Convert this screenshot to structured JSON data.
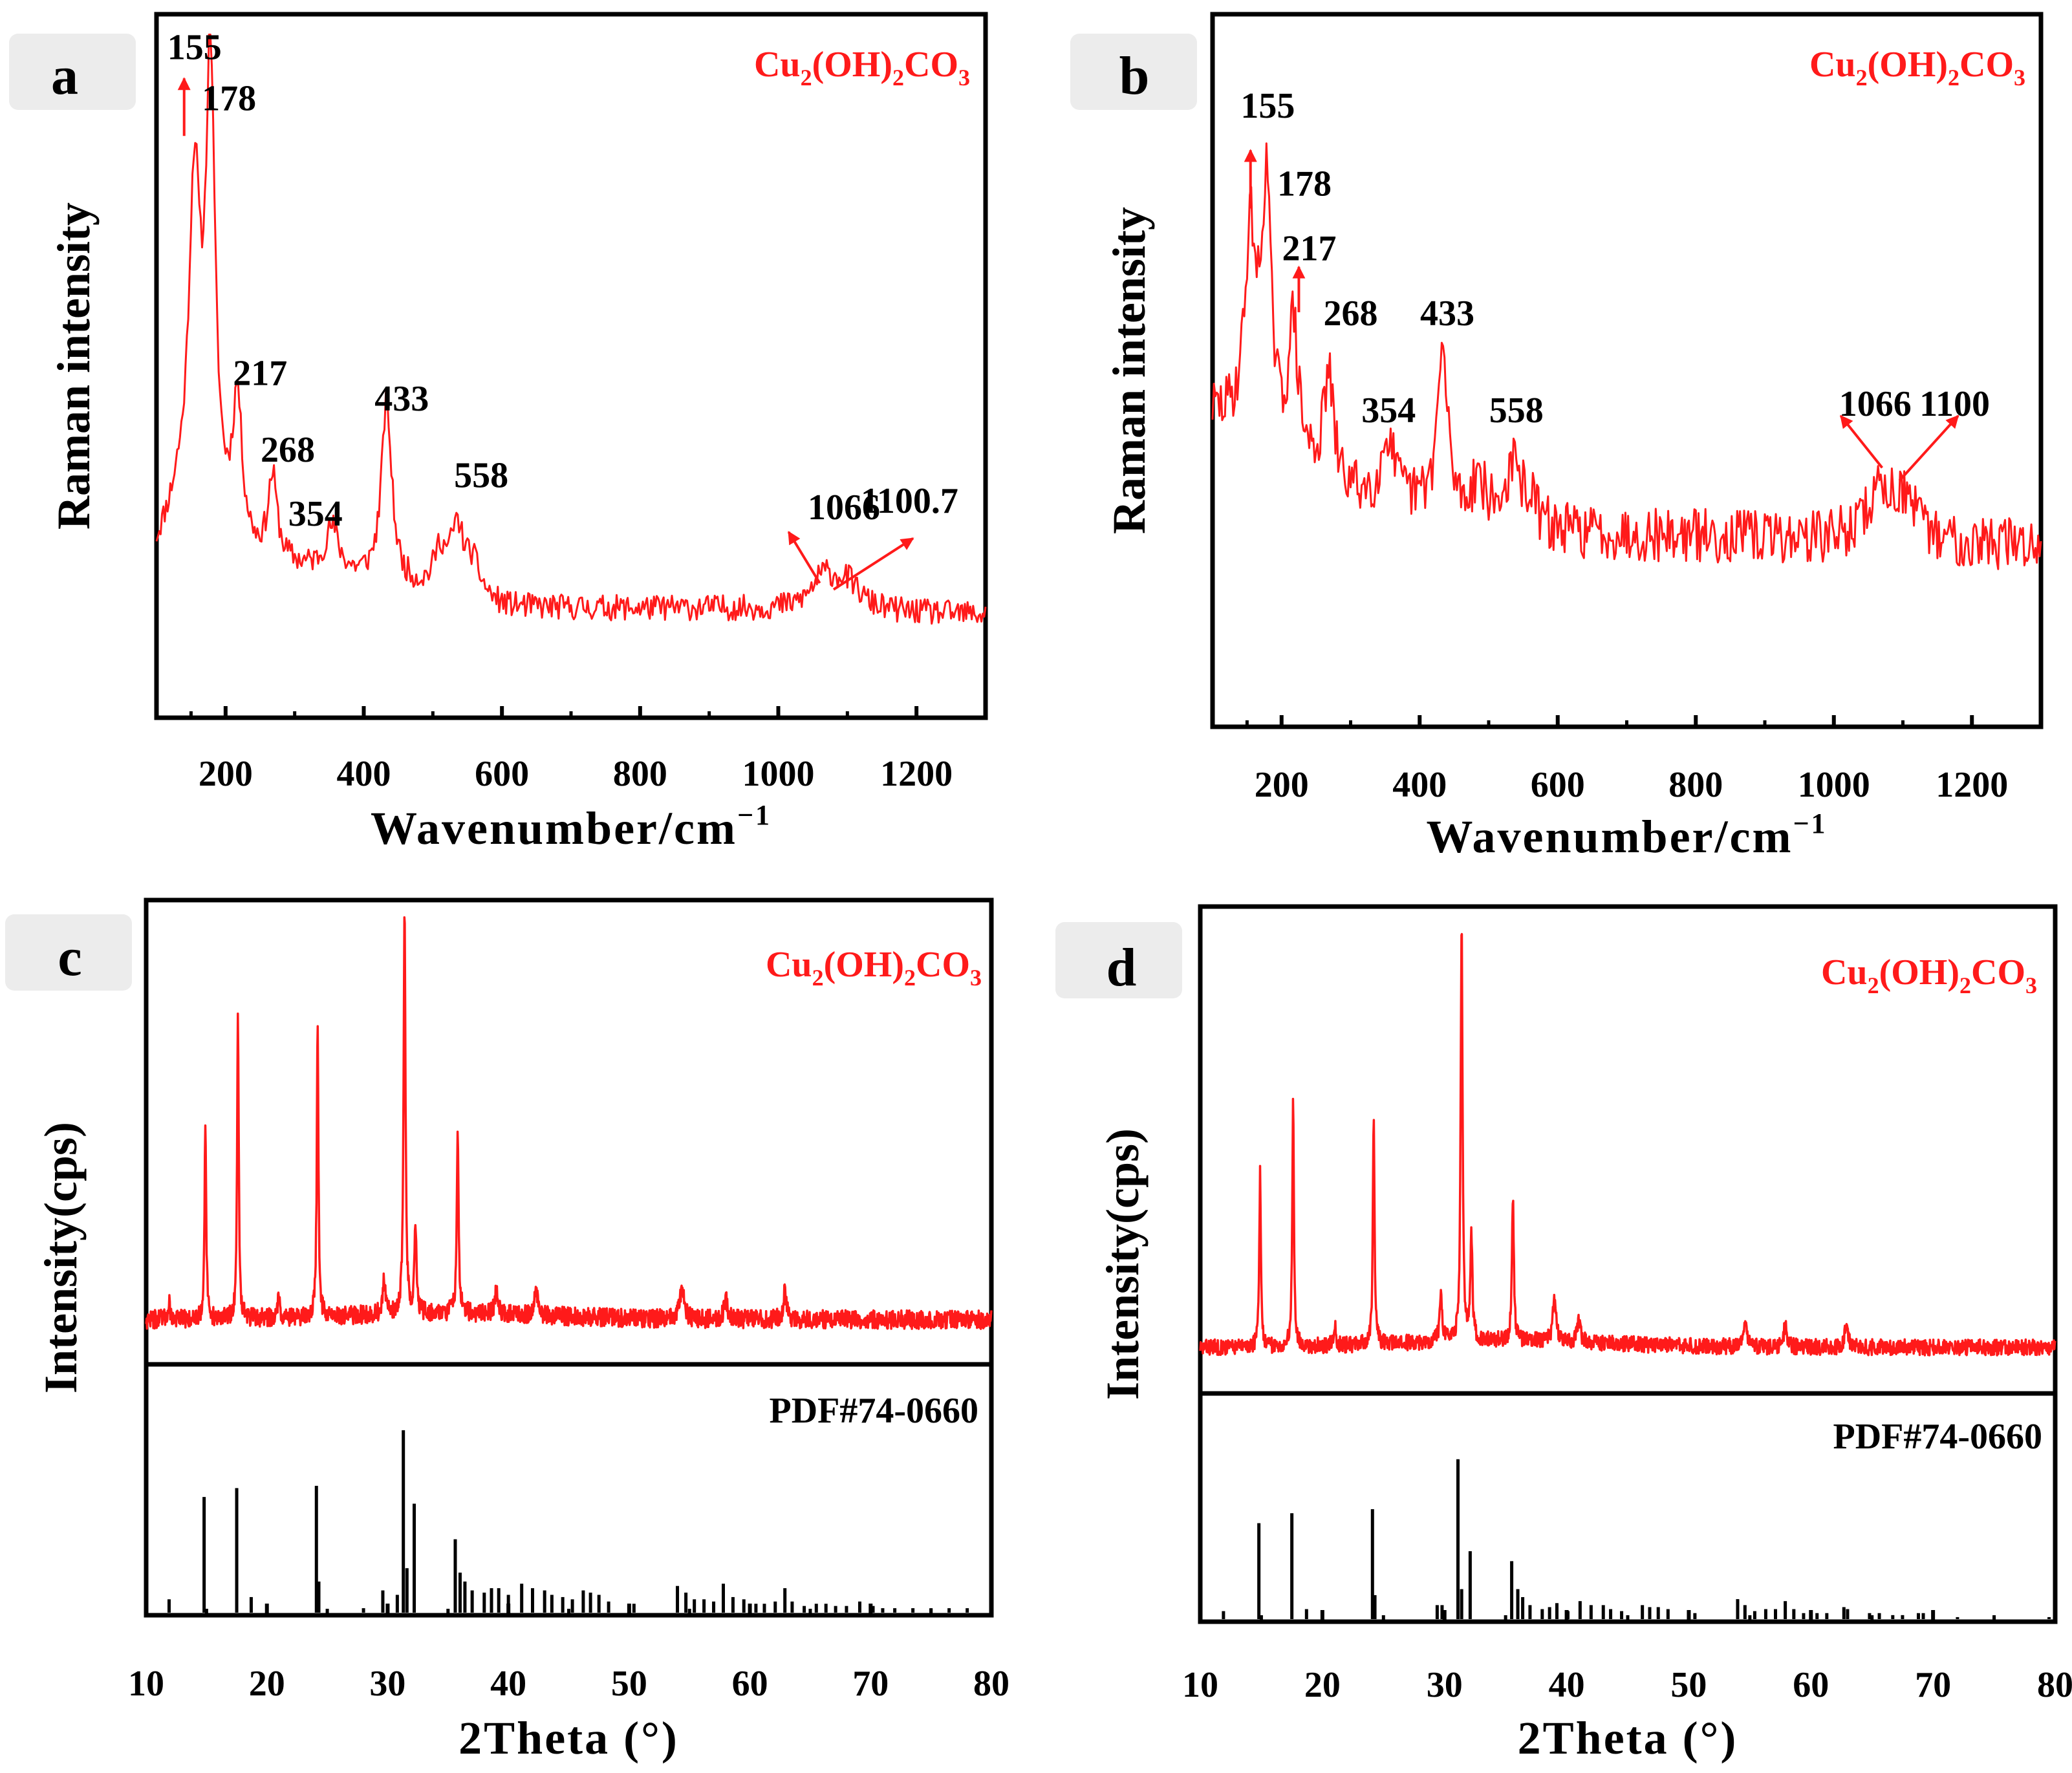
{
  "colors": {
    "spectrum": "#ff1a1a",
    "reference": "#000000",
    "axis": "#000000",
    "panel_badge_bg": "#ececec"
  },
  "chart_data": [
    {
      "panel": "a",
      "type": "line",
      "title": "Cu2(OH)2CO3",
      "compound": {
        "base": "Cu",
        "s1": "2",
        "mid": "(OH)",
        "s2": "2",
        "tail": "CO",
        "s3": "3"
      },
      "xlabel": "Wavenumber/cm",
      "xlabel_sup": "−1",
      "ylabel": "Raman intensity",
      "xlim": [
        100,
        1300
      ],
      "ylim": [
        0,
        100
      ],
      "xticks": [
        "200",
        "400",
        "600",
        "800",
        "1000",
        "1200"
      ],
      "seed": 11,
      "noise": 2.0,
      "baseline": [
        [
          100,
          20
        ],
        [
          130,
          26
        ],
        [
          250,
          18
        ],
        [
          420,
          15
        ],
        [
          600,
          11
        ],
        [
          900,
          11
        ],
        [
          1300,
          10
        ]
      ],
      "peaks": [
        {
          "x": 155,
          "height": 52,
          "width": 10
        },
        {
          "x": 178,
          "height": 70,
          "width": 8
        },
        {
          "x": 217,
          "height": 22,
          "width": 8
        },
        {
          "x": 268,
          "height": 13,
          "width": 8
        },
        {
          "x": 354,
          "height": 7,
          "width": 12
        },
        {
          "x": 433,
          "height": 28,
          "width": 9
        },
        {
          "x": 510,
          "height": 6,
          "width": 10
        },
        {
          "x": 535,
          "height": 10,
          "width": 12
        },
        {
          "x": 558,
          "height": 5,
          "width": 14
        },
        {
          "x": 1066,
          "height": 5,
          "width": 22
        },
        {
          "x": 1100,
          "height": 4,
          "width": 22
        }
      ],
      "annotations": [
        {
          "label": "155",
          "x": 155,
          "y": 97,
          "arrow_from": [
            140,
            85
          ],
          "arrow_to": [
            140,
            94
          ]
        },
        {
          "label": "178",
          "x": 205,
          "y": 89
        },
        {
          "label": "217",
          "x": 250,
          "y": 46
        },
        {
          "label": "268",
          "x": 290,
          "y": 34
        },
        {
          "label": "354",
          "x": 330,
          "y": 24
        },
        {
          "label": "433",
          "x": 455,
          "y": 42
        },
        {
          "label": "558",
          "x": 570,
          "y": 30
        },
        {
          "label": "1066",
          "x": 1095,
          "y": 25,
          "arrow_from": [
            1060,
            15
          ],
          "arrow_to": [
            1015,
            23
          ]
        },
        {
          "label": "1100.7",
          "x": 1190,
          "y": 26,
          "arrow_from": [
            1080,
            14
          ],
          "arrow_to": [
            1195,
            22
          ]
        }
      ]
    },
    {
      "panel": "b",
      "type": "line",
      "title": "Cu2(OH)2CO3",
      "compound": {
        "base": "Cu",
        "s1": "2",
        "mid": "(OH)",
        "s2": "2",
        "tail": "CO",
        "s3": "3"
      },
      "xlabel": "Wavenumber/cm",
      "xlabel_sup": "−1",
      "ylabel": "Raman intensity",
      "xlim": [
        100,
        1300
      ],
      "ylim": [
        0,
        100
      ],
      "xticks": [
        "200",
        "400",
        "600",
        "800",
        "1000",
        "1200"
      ],
      "seed": 29,
      "noise": 4.2,
      "baseline": [
        [
          100,
          42
        ],
        [
          140,
          40
        ],
        [
          300,
          30
        ],
        [
          600,
          24
        ],
        [
          1300,
          22
        ]
      ],
      "peaks": [
        {
          "x": 155,
          "height": 30,
          "width": 10
        },
        {
          "x": 178,
          "height": 38,
          "width": 8
        },
        {
          "x": 217,
          "height": 20,
          "width": 8
        },
        {
          "x": 268,
          "height": 16,
          "width": 8
        },
        {
          "x": 354,
          "height": 10,
          "width": 10
        },
        {
          "x": 433,
          "height": 24,
          "width": 9
        },
        {
          "x": 485,
          "height": 6,
          "width": 10
        },
        {
          "x": 535,
          "height": 8,
          "width": 12
        },
        {
          "x": 558,
          "height": 4,
          "width": 12
        },
        {
          "x": 1066,
          "height": 7,
          "width": 22
        },
        {
          "x": 1100,
          "height": 6,
          "width": 20
        }
      ],
      "annotations": [
        {
          "label": "155",
          "x": 180,
          "y": 88,
          "arrow_from": [
            155,
            74
          ],
          "arrow_to": [
            155,
            83
          ]
        },
        {
          "label": "178",
          "x": 233,
          "y": 76
        },
        {
          "label": "217",
          "x": 240,
          "y": 66,
          "arrow_from": [
            225,
            58
          ],
          "arrow_to": [
            225,
            65
          ]
        },
        {
          "label": "268",
          "x": 300,
          "y": 56
        },
        {
          "label": "354",
          "x": 355,
          "y": 41
        },
        {
          "label": "433",
          "x": 440,
          "y": 56
        },
        {
          "label": "558",
          "x": 540,
          "y": 41
        },
        {
          "label": "1066",
          "x": 1060,
          "y": 42,
          "arrow_from": [
            1070,
            34
          ],
          "arrow_to": [
            1010,
            42
          ]
        },
        {
          "label": "1100",
          "x": 1175,
          "y": 42,
          "arrow_from": [
            1095,
            32
          ],
          "arrow_to": [
            1180,
            42
          ]
        }
      ]
    },
    {
      "panel": "c",
      "type": "line",
      "title": "Cu2(OH)2CO3",
      "compound": {
        "base": "Cu",
        "s1": "2",
        "mid": "(OH)",
        "s2": "2",
        "tail": "CO",
        "s3": "3"
      },
      "reference_label": "PDF#74-0660",
      "xlabel": "2Theta (°)",
      "ylabel": "Intensity(cps)",
      "xlim": [
        10,
        80
      ],
      "xticks": [
        "10",
        "20",
        "30",
        "40",
        "50",
        "60",
        "70",
        "80"
      ],
      "seed": 47,
      "noise": 2.2,
      "measured_baseline": 6,
      "measured_peaks": [
        {
          "x": 14.9,
          "height": 47,
          "width": 0.08
        },
        {
          "x": 17.6,
          "height": 72,
          "width": 0.08
        },
        {
          "x": 24.2,
          "height": 70,
          "width": 0.08
        },
        {
          "x": 31.4,
          "height": 98,
          "width": 0.09
        },
        {
          "x": 32.3,
          "height": 20,
          "width": 0.1
        },
        {
          "x": 35.8,
          "height": 44,
          "width": 0.09
        },
        {
          "x": 29.7,
          "height": 8,
          "width": 0.12
        },
        {
          "x": 21.0,
          "height": 6,
          "width": 0.1
        },
        {
          "x": 39.0,
          "height": 6,
          "width": 0.15
        },
        {
          "x": 42.3,
          "height": 6,
          "width": 0.15
        },
        {
          "x": 54.4,
          "height": 8,
          "width": 0.2
        },
        {
          "x": 62.9,
          "height": 7,
          "width": 0.15
        },
        {
          "x": 58.0,
          "height": 5,
          "width": 0.15
        },
        {
          "x": 11.9,
          "height": 4,
          "width": 0.1
        }
      ],
      "reference_lines": [
        [
          11.9,
          6
        ],
        [
          14.8,
          52
        ],
        [
          17.5,
          56
        ],
        [
          18.7,
          7
        ],
        [
          24.1,
          57
        ],
        [
          24.3,
          14
        ],
        [
          28.0,
          2
        ],
        [
          29.6,
          10
        ],
        [
          30.8,
          8
        ],
        [
          31.3,
          82
        ],
        [
          31.6,
          20
        ],
        [
          32.2,
          49
        ],
        [
          35.6,
          33
        ],
        [
          36.0,
          18
        ],
        [
          36.4,
          14
        ],
        [
          37.0,
          10
        ],
        [
          38.0,
          9
        ],
        [
          38.6,
          11
        ],
        [
          39.2,
          11
        ],
        [
          40.0,
          8
        ],
        [
          41.1,
          13
        ],
        [
          42.0,
          11
        ],
        [
          43.0,
          10
        ],
        [
          43.6,
          8
        ],
        [
          44.5,
          7
        ],
        [
          45.3,
          6
        ],
        [
          46.2,
          10
        ],
        [
          46.8,
          9
        ],
        [
          47.5,
          8
        ],
        [
          48.3,
          5
        ],
        [
          50.4,
          4
        ],
        [
          54.0,
          12
        ],
        [
          54.7,
          9
        ],
        [
          55.4,
          6
        ],
        [
          56.2,
          6
        ],
        [
          57.0,
          5
        ],
        [
          57.8,
          13
        ],
        [
          58.6,
          7
        ],
        [
          59.5,
          6
        ],
        [
          60.5,
          4
        ],
        [
          61.2,
          4
        ],
        [
          62.1,
          5
        ],
        [
          62.9,
          11
        ],
        [
          63.5,
          5
        ],
        [
          64.5,
          3
        ],
        [
          65.5,
          4
        ],
        [
          66.3,
          4
        ],
        [
          67.1,
          3
        ],
        [
          68.0,
          3
        ],
        [
          69.1,
          5
        ],
        [
          70.2,
          3
        ],
        [
          71.0,
          2
        ],
        [
          72.0,
          2
        ],
        [
          73.5,
          2
        ],
        [
          75.0,
          2
        ],
        [
          76.5,
          2
        ],
        [
          78.0,
          2
        ]
      ]
    },
    {
      "panel": "d",
      "type": "line",
      "title": "Cu2(OH)2CO3",
      "compound": {
        "base": "Cu",
        "s1": "2",
        "mid": "(OH)",
        "s2": "2",
        "tail": "CO",
        "s3": "3"
      },
      "reference_label": "PDF#74-0660",
      "xlabel": "2Theta (°)",
      "ylabel": "Intensity(cps)",
      "xlim": [
        10,
        80
      ],
      "xticks": [
        "10",
        "20",
        "30",
        "40",
        "50",
        "60",
        "70",
        "80"
      ],
      "seed": 83,
      "noise": 1.8,
      "measured_baseline": 6,
      "measured_peaks": [
        {
          "x": 14.9,
          "height": 39,
          "width": 0.08
        },
        {
          "x": 17.6,
          "height": 56,
          "width": 0.08
        },
        {
          "x": 24.2,
          "height": 53,
          "width": 0.08
        },
        {
          "x": 31.4,
          "height": 95,
          "width": 0.09
        },
        {
          "x": 32.2,
          "height": 23,
          "width": 0.1
        },
        {
          "x": 35.6,
          "height": 33,
          "width": 0.09
        },
        {
          "x": 29.7,
          "height": 10,
          "width": 0.12
        },
        {
          "x": 21.0,
          "height": 5,
          "width": 0.1
        },
        {
          "x": 39.0,
          "height": 10,
          "width": 0.15
        },
        {
          "x": 41.0,
          "height": 5,
          "width": 0.15
        },
        {
          "x": 54.6,
          "height": 6,
          "width": 0.2
        },
        {
          "x": 62.9,
          "height": 6,
          "width": 0.15
        },
        {
          "x": 57.9,
          "height": 5,
          "width": 0.15
        }
      ],
      "reference_lines": [
        [
          11.9,
          4
        ],
        [
          14.8,
          48
        ],
        [
          17.5,
          53
        ],
        [
          18.7,
          5
        ],
        [
          24.1,
          55
        ],
        [
          24.3,
          12
        ],
        [
          29.4,
          7
        ],
        [
          29.8,
          7
        ],
        [
          31.1,
          80
        ],
        [
          31.4,
          15
        ],
        [
          32.1,
          34
        ],
        [
          35.5,
          29
        ],
        [
          36.0,
          15
        ],
        [
          36.4,
          11
        ],
        [
          37.0,
          7
        ],
        [
          38.0,
          5
        ],
        [
          38.6,
          6
        ],
        [
          39.2,
          8
        ],
        [
          40.1,
          4
        ],
        [
          41.1,
          9
        ],
        [
          42.0,
          7
        ],
        [
          43.0,
          7
        ],
        [
          43.6,
          5
        ],
        [
          44.5,
          4
        ],
        [
          46.2,
          7
        ],
        [
          46.8,
          6
        ],
        [
          47.5,
          6
        ],
        [
          48.3,
          5
        ],
        [
          50.5,
          3
        ],
        [
          54.0,
          10
        ],
        [
          54.6,
          7
        ],
        [
          55.4,
          4
        ],
        [
          56.3,
          5
        ],
        [
          57.1,
          5
        ],
        [
          57.9,
          9
        ],
        [
          58.6,
          5
        ],
        [
          59.4,
          3
        ],
        [
          60.5,
          3
        ],
        [
          61.3,
          3
        ],
        [
          62.7,
          6
        ],
        [
          63.0,
          5
        ],
        [
          64.8,
          3
        ],
        [
          65.6,
          3
        ],
        [
          66.7,
          2
        ],
        [
          67.5,
          2
        ],
        [
          68.8,
          3
        ],
        [
          69.2,
          3
        ],
        [
          72.0,
          1
        ],
        [
          75.0,
          1
        ],
        [
          79.5,
          1
        ]
      ]
    }
  ]
}
